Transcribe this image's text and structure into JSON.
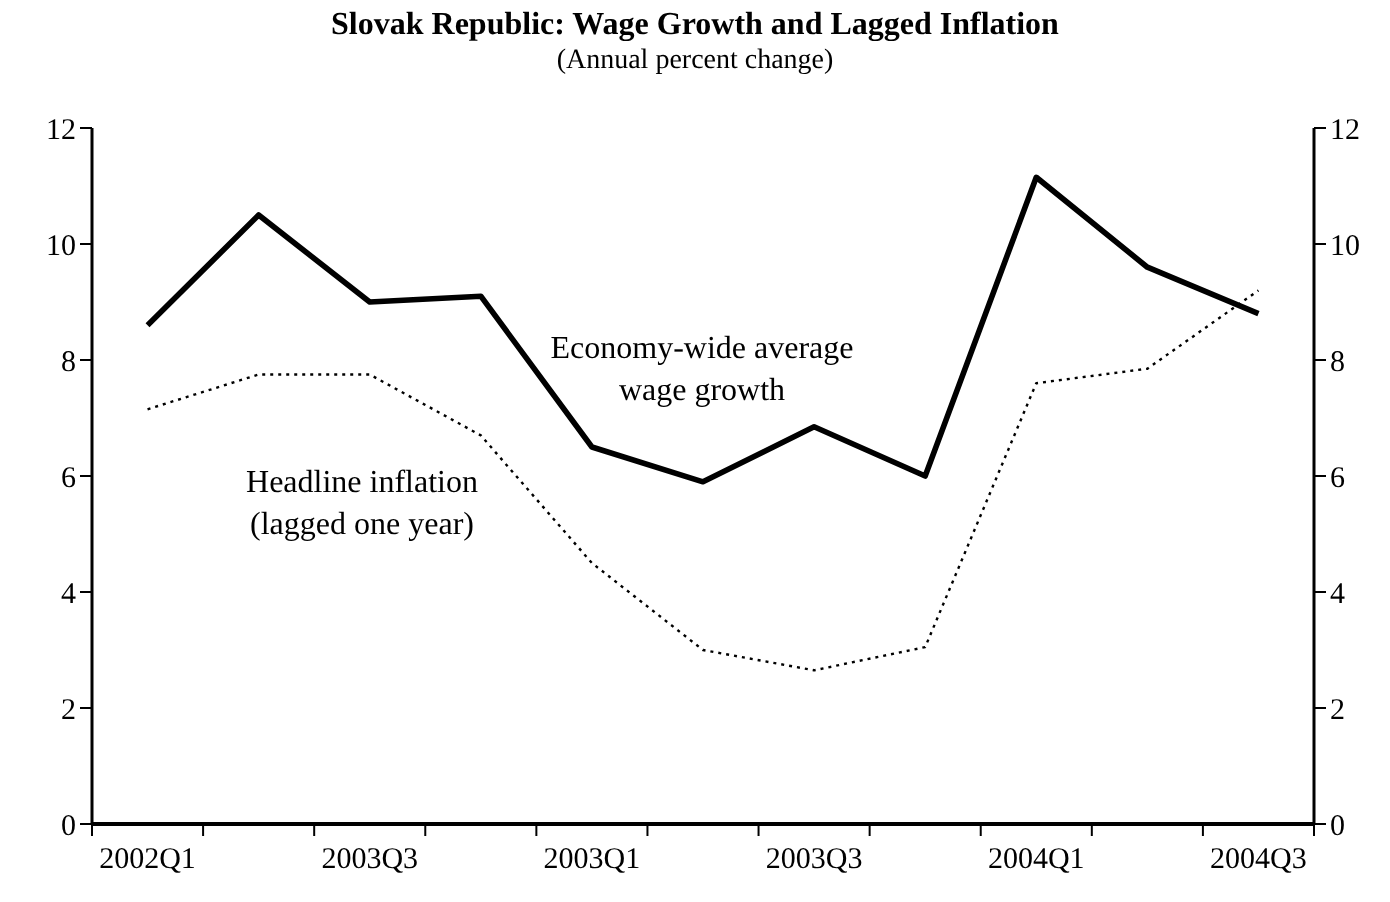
{
  "chart_data": {
    "type": "line",
    "title": "Slovak Republic: Wage Growth and Lagged Inflation",
    "subtitle": "(Annual percent change)",
    "categories": [
      "2002Q1",
      null,
      "2003Q3",
      null,
      "2003Q1",
      null,
      "2003Q3",
      null,
      "2004Q1",
      null,
      "2004Q3"
    ],
    "series": [
      {
        "name": "Economy-wide average wage growth",
        "color": "#000000",
        "line_style": "solid",
        "values": [
          8.6,
          10.5,
          9.0,
          9.1,
          6.5,
          5.9,
          6.85,
          6.0,
          11.15,
          9.6,
          8.8
        ]
      },
      {
        "name": "Headline inflation (lagged one year)",
        "color": "#000000",
        "line_style": "dotted",
        "values": [
          7.15,
          7.75,
          7.75,
          6.7,
          4.5,
          3.0,
          2.65,
          3.05,
          7.6,
          7.85,
          9.2
        ]
      }
    ],
    "ylim": [
      0,
      12
    ],
    "yticks": [
      0,
      2,
      4,
      6,
      8,
      10,
      12
    ],
    "y2lim": [
      0,
      12
    ],
    "y2ticks": [
      0,
      2,
      4,
      6,
      8,
      10,
      12
    ],
    "marker": "none"
  }
}
